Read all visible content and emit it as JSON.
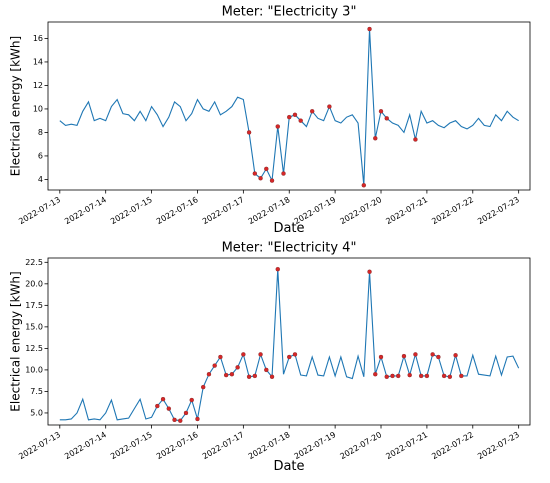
{
  "chart_data": [
    {
      "type": "line",
      "title": "Meter: \"Electricity 3\"",
      "x_label": "Date",
      "y_label": "Electrical energy [kWh]",
      "xticks": [
        "2022-07-13",
        "2022-07-14",
        "2022-07-15",
        "2022-07-16",
        "2022-07-17",
        "2022-07-18",
        "2022-07-19",
        "2022-07-20",
        "2022-07-21",
        "2022-07-22",
        "2022-07-23"
      ],
      "ylim": [
        3.1,
        17.4
      ],
      "yticks": [
        4,
        6,
        8,
        10,
        12,
        14,
        16
      ],
      "series": [
        {
          "color": "#1f77b4",
          "style": "line",
          "values": [
            9,
            8.6,
            8.7,
            8.6,
            9.8,
            10.6,
            9.0,
            9.2,
            9.0,
            10.2,
            10.8,
            9.6,
            9.5,
            9.0,
            9.8,
            9.0,
            10.2,
            9.5,
            8.5,
            9.3,
            10.6,
            10.2,
            9.0,
            9.6,
            10.8,
            10.0,
            9.8,
            10.6,
            9.5,
            9.8,
            10.2,
            11.0,
            10.8,
            8.0,
            4.5,
            4.1,
            4.9,
            3.9,
            8.5,
            4.5,
            9.3,
            9.5,
            9.0,
            8.5,
            9.8,
            9.2,
            9.0,
            10.2,
            9.0,
            8.8,
            9.3,
            9.5,
            8.8,
            3.5,
            16.8,
            7.5,
            9.8,
            9.2,
            8.8,
            8.6,
            8.0,
            9.5,
            7.4,
            9.8,
            8.8,
            9.0,
            8.6,
            8.4,
            8.8,
            9.0,
            8.5,
            8.3,
            8.6,
            9.2,
            8.6,
            8.5,
            9.5,
            9.0,
            9.8,
            9.3,
            9.0
          ]
        },
        {
          "color": "#d62728",
          "style": "markers",
          "values": [
            null,
            null,
            null,
            null,
            null,
            null,
            null,
            null,
            null,
            null,
            null,
            null,
            null,
            null,
            null,
            null,
            null,
            null,
            null,
            null,
            null,
            null,
            null,
            null,
            null,
            null,
            null,
            null,
            null,
            null,
            null,
            null,
            null,
            8.0,
            4.5,
            4.1,
            4.9,
            3.9,
            8.5,
            4.5,
            9.3,
            9.5,
            9.0,
            null,
            9.8,
            null,
            null,
            10.2,
            null,
            null,
            null,
            null,
            null,
            3.5,
            16.8,
            7.5,
            9.8,
            9.2,
            null,
            null,
            null,
            null,
            7.4,
            null,
            null,
            null,
            null,
            null,
            null,
            null,
            null,
            null,
            null,
            null,
            null,
            null,
            null,
            null,
            null,
            null,
            null
          ]
        }
      ]
    },
    {
      "type": "line",
      "title": "Meter: \"Electricity 4\"",
      "x_label": "Date",
      "y_label": "Electrical energy [kWh]",
      "xticks": [
        "2022-07-13",
        "2022-07-14",
        "2022-07-15",
        "2022-07-16",
        "2022-07-17",
        "2022-07-18",
        "2022-07-19",
        "2022-07-20",
        "2022-07-21",
        "2022-07-22",
        "2022-07-23"
      ],
      "ylim": [
        3.6,
        23.0
      ],
      "yticks": [
        {
          "value": 5,
          "label": "5.0"
        },
        {
          "value": 7.5,
          "label": "7.5"
        },
        {
          "value": 10,
          "label": "10.0"
        },
        {
          "value": 12.5,
          "label": "12.5"
        },
        {
          "value": 15,
          "label": "15.0"
        },
        {
          "value": 17.5,
          "label": "17.5"
        },
        {
          "value": 20,
          "label": "20.0"
        },
        {
          "value": 22.5,
          "label": "22.5"
        }
      ],
      "series": [
        {
          "color": "#1f77b4",
          "style": "line",
          "values": [
            4.2,
            4.2,
            4.3,
            5.0,
            6.6,
            4.2,
            4.3,
            4.2,
            5.0,
            6.5,
            4.2,
            4.3,
            4.4,
            5.5,
            6.6,
            4.3,
            4.5,
            5.8,
            6.6,
            5.5,
            4.2,
            4.1,
            5.0,
            6.5,
            4.3,
            8.0,
            9.5,
            10.5,
            11.5,
            9.4,
            9.5,
            10.3,
            11.8,
            9.2,
            9.3,
            11.8,
            10.0,
            9.2,
            21.7,
            9.5,
            11.5,
            11.8,
            9.4,
            9.3,
            11.5,
            9.4,
            9.3,
            11.5,
            9.3,
            11.5,
            9.2,
            9.0,
            11.6,
            9.2,
            21.4,
            9.5,
            11.5,
            9.2,
            9.3,
            9.3,
            11.6,
            9.4,
            11.8,
            9.3,
            9.3,
            11.8,
            11.5,
            9.3,
            9.2,
            11.7,
            9.3,
            9.3,
            11.7,
            9.5,
            9.4,
            9.3,
            11.6,
            9.4,
            11.5,
            11.6,
            10.2
          ]
        },
        {
          "color": "#d62728",
          "style": "markers",
          "values": [
            null,
            null,
            null,
            null,
            null,
            null,
            null,
            null,
            null,
            null,
            null,
            null,
            null,
            null,
            null,
            null,
            null,
            5.8,
            6.6,
            5.5,
            4.2,
            4.1,
            5.0,
            6.5,
            4.3,
            8.0,
            9.5,
            10.5,
            11.5,
            9.4,
            9.5,
            10.3,
            11.8,
            9.2,
            9.3,
            11.8,
            10.0,
            9.2,
            21.7,
            null,
            11.5,
            11.8,
            null,
            null,
            null,
            null,
            null,
            null,
            null,
            null,
            null,
            null,
            null,
            null,
            21.4,
            9.5,
            11.5,
            9.2,
            9.3,
            9.3,
            11.6,
            9.4,
            11.8,
            9.3,
            9.3,
            11.8,
            11.5,
            9.3,
            9.2,
            11.7,
            9.3,
            null,
            null,
            null,
            null,
            null,
            null,
            null,
            null,
            null,
            null
          ]
        }
      ]
    }
  ]
}
